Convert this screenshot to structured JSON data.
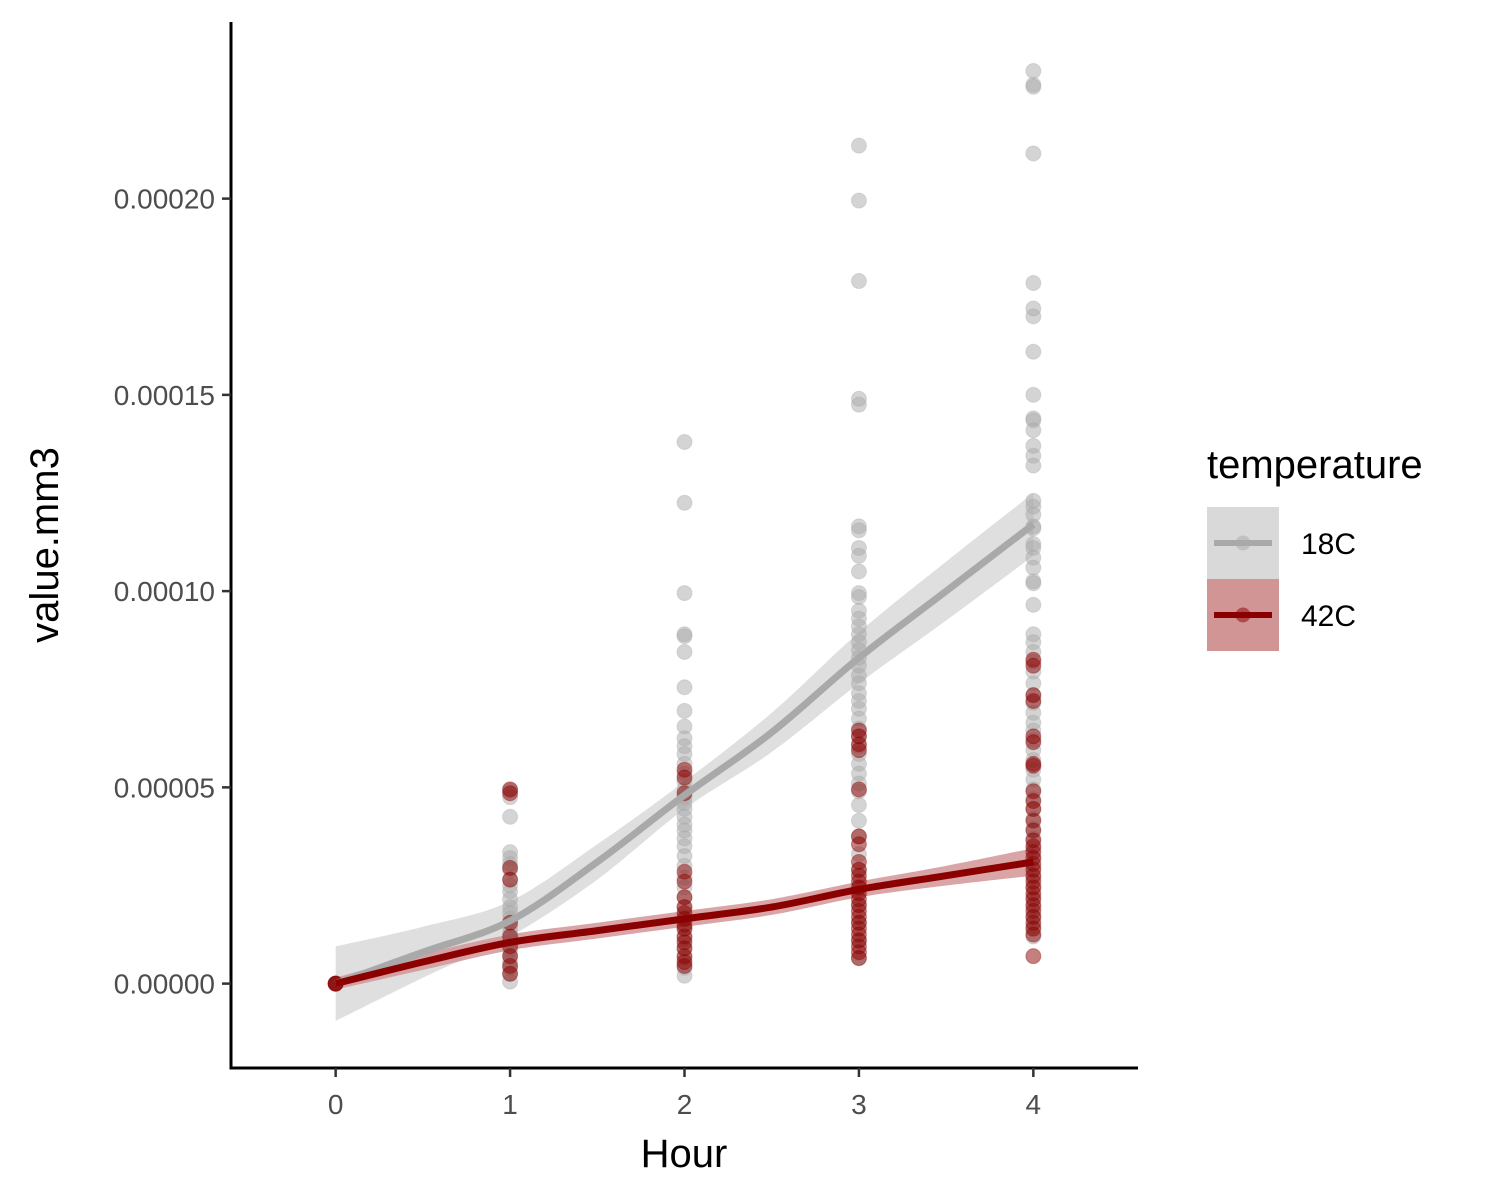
{
  "chart_data": {
    "type": "scatter",
    "xlabel": "Hour",
    "ylabel": "value.mm3",
    "xlim": [
      -0.6,
      4.6
    ],
    "ylim": [
      -2.15e-05,
      0.000245
    ],
    "x_ticks": [
      0,
      1,
      2,
      3,
      4
    ],
    "x_tick_labels": [
      "0",
      "1",
      "2",
      "3",
      "4"
    ],
    "y_ticks": [
      0,
      5e-05,
      0.0001,
      0.00015,
      0.0002
    ],
    "y_tick_labels": [
      "0.00000",
      "0.00005",
      "0.00010",
      "0.00015",
      "0.00020"
    ],
    "grid": false,
    "legend": {
      "title": "temperature",
      "position": "right"
    },
    "series": [
      {
        "name": "18C",
        "color": "#a9a9a9",
        "band_color": "#d9d9d9",
        "points": {
          "0": [
            0,
            0,
            0,
            0
          ],
          "1": [
            4.92e-05,
            4.75e-05,
            4.25e-05,
            3.35e-05,
            3.2e-05,
            3.05e-05,
            2.9e-05,
            2.65e-05,
            2.5e-05,
            2.35e-05,
            2.15e-05,
            1.95e-05,
            1.8e-05,
            1.65e-05,
            1.45e-05,
            1.3e-05,
            1.15e-05,
            1e-05,
            8.5e-06,
            7e-06,
            5.5e-06,
            4e-06,
            2.5e-06,
            5e-07
          ],
          "2": [
            0.000138,
            0.0001225,
            9.95e-05,
            8.9e-05,
            8.85e-05,
            8.45e-05,
            7.55e-05,
            6.95e-05,
            6.55e-05,
            6.25e-05,
            6.05e-05,
            5.85e-05,
            5.6e-05,
            5.35e-05,
            5.15e-05,
            4.95e-05,
            4.75e-05,
            4.6e-05,
            4.45e-05,
            4.25e-05,
            4.05e-05,
            3.9e-05,
            3.7e-05,
            3.5e-05,
            3.25e-05,
            3e-05,
            2.7e-05,
            2.45e-05,
            2.2e-05,
            1.95e-05,
            1.7e-05,
            1.4e-05,
            1.15e-05,
            9e-06,
            6.5e-06,
            4e-06,
            2e-06
          ],
          "3": [
            0.0002135,
            0.0001995,
            0.000179,
            0.000149,
            0.0001475,
            0.0001165,
            0.0001155,
            0.000111,
            0.000109,
            0.000105,
            9.95e-05,
            9.85e-05,
            9.5e-05,
            9.3e-05,
            9.1e-05,
            8.9e-05,
            8.7e-05,
            8.5e-05,
            8.3e-05,
            8.1e-05,
            7.85e-05,
            7.65e-05,
            7.4e-05,
            7.2e-05,
            7e-05,
            6.75e-05,
            6.5e-05,
            6.3e-05,
            6.05e-05,
            5.85e-05,
            5.6e-05,
            5.35e-05,
            5.1e-05,
            4.9e-05,
            4.55e-05,
            4.15e-05,
            3.75e-05,
            3.3e-05,
            2.9e-05,
            2.45e-05,
            2e-05,
            1.55e-05,
            1.1e-05,
            6.5e-06
          ],
          "4": [
            0.0002325,
            0.000229,
            0.0002285,
            0.0002115,
            0.0001785,
            0.000172,
            0.00017,
            0.000161,
            0.00015,
            0.000144,
            0.0001435,
            0.000141,
            0.000137,
            0.0001345,
            0.000132,
            0.000123,
            0.0001215,
            0.0001195,
            0.0001165,
            0.000116,
            0.000112,
            0.000111,
            0.0001085,
            0.000106,
            0.0001025,
            0.000102,
            9.65e-05,
            8.9e-05,
            8.7e-05,
            8.45e-05,
            8.2e-05,
            7.95e-05,
            7.65e-05,
            7.35e-05,
            7.15e-05,
            6.9e-05,
            6.65e-05,
            6.45e-05,
            6.2e-05,
            5.95e-05,
            5.7e-05,
            5.45e-05,
            5.2e-05,
            4.95e-05,
            4.7e-05,
            4.45e-05,
            4.2e-05,
            3.95e-05,
            3.7e-05,
            3.45e-05,
            3.2e-05,
            2.95e-05,
            2.7e-05,
            2.45e-05,
            2.2e-05,
            1.95e-05,
            1.7e-05,
            1.45e-05,
            1.2e-05
          ]
        },
        "smooth": {
          "x": [
            0,
            0.5,
            1,
            1.5,
            2,
            2.5,
            3,
            3.5,
            4
          ],
          "y": [
            0,
            8e-06,
            1.6e-05,
            3.1e-05,
            4.8e-05,
            6.4e-05,
            8.3e-05,
            0.0001,
            0.000117
          ],
          "lower": [
            -9.5e-06,
            1.5e-06,
            1.2e-05,
            2.65e-05,
            4.45e-05,
            5.9e-05,
            7.65e-05,
            9.25e-05,
            0.000109
          ],
          "upper": [
            9.5e-06,
            1.45e-05,
            2.1e-05,
            3.55e-05,
            5.15e-05,
            6.9e-05,
            8.95e-05,
            0.0001075,
            0.000125
          ]
        }
      },
      {
        "name": "42C",
        "color": "#8b0000",
        "band_color": "#d29596",
        "points": {
          "0": [
            0,
            0,
            0
          ],
          "1": [
            4.95e-05,
            4.85e-05,
            2.95e-05,
            2.65e-05,
            1.55e-05,
            1.2e-05,
            9.5e-06,
            7e-06,
            4.5e-06,
            2.5e-06
          ],
          "2": [
            5.45e-05,
            5.25e-05,
            4.85e-05,
            2.85e-05,
            2.6e-05,
            2.2e-05,
            1.95e-05,
            1.8e-05,
            1.65e-05,
            1.5e-05,
            1.4e-05,
            1.2e-05,
            1.05e-05,
            9e-06,
            7e-06,
            5.5e-06,
            4.5e-06
          ],
          "3": [
            6.45e-05,
            6.3e-05,
            6.1e-05,
            5.95e-05,
            4.95e-05,
            3.75e-05,
            3.55e-05,
            3.1e-05,
            2.9e-05,
            2.75e-05,
            2.6e-05,
            2.45e-05,
            2.3e-05,
            2.15e-05,
            2e-05,
            1.85e-05,
            1.7e-05,
            1.55e-05,
            1.4e-05,
            1.25e-05,
            1.1e-05,
            9.5e-06,
            8e-06,
            6.5e-06
          ],
          "4": [
            8.25e-05,
            8.1e-05,
            7.35e-05,
            7.2e-05,
            6.3e-05,
            6.15e-05,
            5.6e-05,
            5.55e-05,
            4.9e-05,
            4.65e-05,
            4.45e-05,
            4.15e-05,
            3.9e-05,
            3.65e-05,
            3.5e-05,
            3.35e-05,
            3.2e-05,
            3.05e-05,
            2.9e-05,
            2.75e-05,
            2.6e-05,
            2.45e-05,
            2.3e-05,
            2.15e-05,
            2e-05,
            1.85e-05,
            1.7e-05,
            1.55e-05,
            1.4e-05,
            1.25e-05,
            7e-06
          ]
        },
        "smooth": {
          "x": [
            0,
            0.5,
            1,
            1.5,
            2,
            2.5,
            3,
            3.5,
            4
          ],
          "y": [
            0,
            5.5e-06,
            1.05e-05,
            1.35e-05,
            1.65e-05,
            1.95e-05,
            2.4e-05,
            2.75e-05,
            3.1e-05
          ],
          "lower": [
            -1.5e-06,
            3.5e-06,
            8.5e-06,
            1.15e-05,
            1.45e-05,
            1.75e-05,
            2.2e-05,
            2.5e-05,
            2.75e-05
          ],
          "upper": [
            1.5e-06,
            7.5e-06,
            1.25e-05,
            1.55e-05,
            1.85e-05,
            2.15e-05,
            2.6e-05,
            3e-05,
            3.45e-05
          ]
        }
      }
    ]
  }
}
